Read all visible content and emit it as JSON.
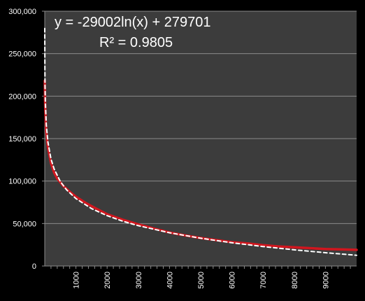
{
  "chart_data": {
    "type": "line",
    "title": "",
    "xlabel": "",
    "ylabel": "",
    "xlim": [
      0,
      10000
    ],
    "ylim": [
      0,
      300000
    ],
    "x_ticks": [
      1000,
      2000,
      3000,
      4000,
      5000,
      6000,
      7000,
      8000,
      9000
    ],
    "y_ticks": [
      0,
      50000,
      100000,
      150000,
      200000,
      250000,
      300000
    ],
    "x_tick_labels": [
      "1000",
      "2000",
      "3000",
      "4000",
      "5000",
      "6000",
      "7000",
      "8000",
      "9000"
    ],
    "y_tick_labels": [
      "0",
      "50,000",
      "100,000",
      "150,000",
      "200,000",
      "250,000",
      "300,000"
    ],
    "grid": "horizontal",
    "annotation": {
      "equation": "y = -29002ln(x) + 279701",
      "r_squared": "R² = 0.9805"
    },
    "series": [
      {
        "style": "solid",
        "color": "#d0161e",
        "x": [
          1,
          10,
          30,
          50,
          100,
          200,
          300,
          400,
          600,
          800,
          1000,
          1300,
          1600,
          2000,
          2500,
          3000,
          3500,
          4000,
          4500,
          5000,
          5500,
          6000,
          6500,
          7000,
          7500,
          8000,
          8500,
          9000,
          9500,
          10000
        ],
        "y": [
          218000,
          195000,
          172000,
          158000,
          140000,
          121000,
          110000,
          103000,
          94000,
          87500,
          81500,
          74500,
          68500,
          61000,
          54500,
          49000,
          44000,
          39500,
          36000,
          33000,
          30500,
          28000,
          26500,
          24500,
          23000,
          22000,
          21000,
          20000,
          19500,
          19000
        ]
      },
      {
        "style": "dashed",
        "color": "#ffffff",
        "x": [
          1,
          2,
          5,
          10,
          20,
          50,
          100,
          200,
          300,
          500,
          700,
          1000,
          1500,
          2000,
          2500,
          3000,
          4000,
          5000,
          6000,
          7000,
          8000,
          9000,
          10000
        ],
        "y": [
          279701,
          259599,
          233025,
          212923,
          192821,
          166247,
          146145,
          126043,
          114283,
          99469,
          89710,
          79359,
          67600,
          59256,
          52785,
          47497,
          39153,
          32682,
          27394,
          22923,
          19051,
          15635,
          12579
        ]
      }
    ]
  }
}
